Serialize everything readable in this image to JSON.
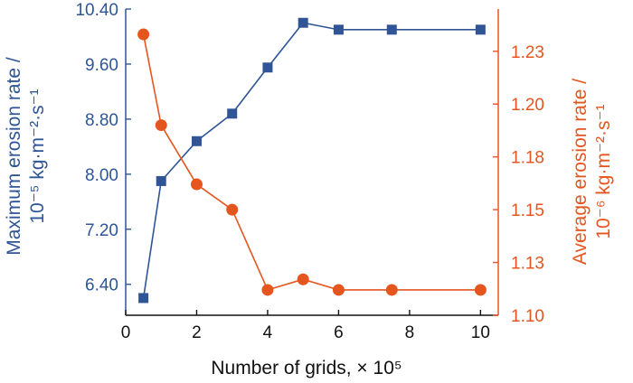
{
  "chart_data": {
    "type": "line",
    "x": [
      0.5,
      1.0,
      2.0,
      3.0,
      4.0,
      5.0,
      6.0,
      7.5,
      10.0
    ],
    "xlabel": "Number of grids, × 10⁵",
    "xlim": [
      0,
      10.5
    ],
    "x_ticks": [
      0,
      2,
      4,
      6,
      8,
      10
    ],
    "x_tick_labels": [
      "0",
      "2",
      "4",
      "6",
      "8",
      "10"
    ],
    "y_left": {
      "label_line1": "Maximum erosion rate /",
      "label_line2": "10⁻⁵ kg·m⁻²·s⁻¹",
      "lim": [
        5.95,
        10.4
      ],
      "ticks": [
        6.4,
        7.2,
        8.0,
        8.8,
        9.6,
        10.4
      ],
      "tick_labels": [
        "6.40",
        "7.20",
        "8.00",
        "8.80",
        "9.60",
        "10.40"
      ],
      "color": "#2f5597"
    },
    "y_right": {
      "label_line1": "Average erosion rate /",
      "label_line2": "10⁻⁶ kg·m⁻²·s⁻¹",
      "lim": [
        1.1,
        1.245
      ],
      "ticks": [
        1.1,
        1.125,
        1.15,
        1.175,
        1.2,
        1.225
      ],
      "tick_labels": [
        "1.10",
        "1.13",
        "1.15",
        "1.18",
        "1.20",
        "1.23"
      ],
      "color": "#e5561f"
    },
    "series": [
      {
        "axis": "left",
        "marker": "square",
        "color": "#2f5597",
        "values": [
          6.2,
          7.9,
          8.48,
          8.88,
          9.55,
          10.2,
          10.1,
          10.1,
          10.1
        ]
      },
      {
        "axis": "right",
        "marker": "circle",
        "color": "#e5561f",
        "values": [
          1.233,
          1.19,
          1.162,
          1.15,
          1.112,
          1.117,
          1.112,
          1.112,
          1.112
        ]
      }
    ],
    "grid": false,
    "legend": "none"
  }
}
